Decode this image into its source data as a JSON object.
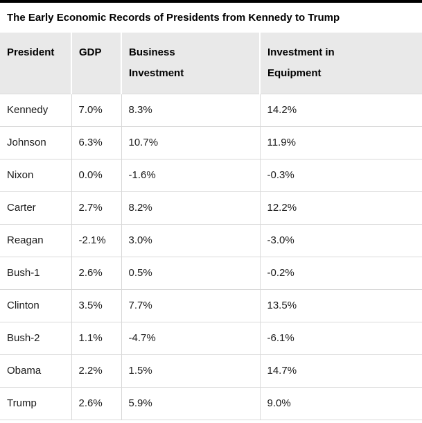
{
  "title": "The Early Economic Records of Presidents from Kennedy to Trump",
  "chart_data": {
    "type": "table",
    "columns": [
      "President",
      "GDP",
      "Business Investment",
      "Investment in Equipment"
    ],
    "rows": [
      [
        "Kennedy",
        "7.0%",
        "8.3%",
        "14.2%"
      ],
      [
        "Johnson",
        "6.3%",
        "10.7%",
        "11.9%"
      ],
      [
        "Nixon",
        "0.0%",
        "-1.6%",
        "-0.3%"
      ],
      [
        "Carter",
        "2.7%",
        "8.2%",
        "12.2%"
      ],
      [
        "Reagan",
        "-2.1%",
        "3.0%",
        "-3.0%"
      ],
      [
        "Bush-1",
        "2.6%",
        "0.5%",
        "-0.2%"
      ],
      [
        "Clinton",
        "3.5%",
        "7.7%",
        "13.5%"
      ],
      [
        "Bush-2",
        "1.1%",
        "-4.7%",
        "-6.1%"
      ],
      [
        "Obama",
        "2.2%",
        "1.5%",
        "14.7%"
      ],
      [
        "Trump",
        "2.6%",
        "5.9%",
        "9.0%"
      ]
    ]
  },
  "table": {
    "header_display": [
      "President",
      "GDP",
      "Business\nInvestment",
      "Investment in\nEquipment"
    ]
  },
  "colors": {
    "top_rule": "#000000",
    "header_background": "#e9e9e9",
    "row_border": "#d9d9d9",
    "title_text": "#000000",
    "body_text": "#1a1a1a"
  }
}
